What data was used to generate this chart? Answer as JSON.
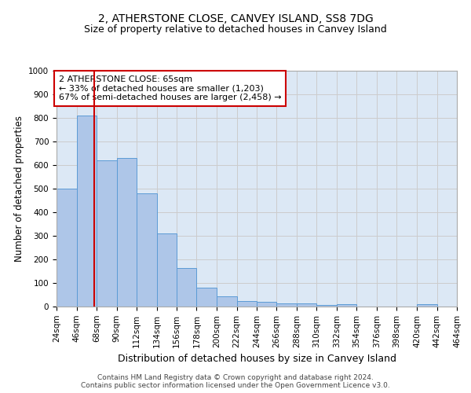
{
  "title": "2, ATHERSTONE CLOSE, CANVEY ISLAND, SS8 7DG",
  "subtitle": "Size of property relative to detached houses in Canvey Island",
  "xlabel": "Distribution of detached houses by size in Canvey Island",
  "ylabel": "Number of detached properties",
  "footer_line1": "Contains HM Land Registry data © Crown copyright and database right 2024.",
  "footer_line2": "Contains public sector information licensed under the Open Government Licence v3.0.",
  "bar_values": [
    500,
    810,
    620,
    630,
    480,
    310,
    162,
    80,
    45,
    25,
    20,
    15,
    12,
    7,
    10,
    0,
    0,
    0,
    10,
    0
  ],
  "bin_labels": [
    "24sqm",
    "46sqm",
    "68sqm",
    "90sqm",
    "112sqm",
    "134sqm",
    "156sqm",
    "178sqm",
    "200sqm",
    "222sqm",
    "244sqm",
    "266sqm",
    "288sqm",
    "310sqm",
    "332sqm",
    "354sqm",
    "376sqm",
    "398sqm",
    "420sqm",
    "442sqm",
    "464sqm"
  ],
  "bar_color": "#aec6e8",
  "bar_edge_color": "#5b9bd5",
  "red_line_x": 65,
  "annotation_text": "2 ATHERSTONE CLOSE: 65sqm\n← 33% of detached houses are smaller (1,203)\n67% of semi-detached houses are larger (2,458) →",
  "red_line_color": "#cc0000",
  "annotation_box_facecolor": "#ffffff",
  "annotation_box_edgecolor": "#cc0000",
  "ylim": [
    0,
    1000
  ],
  "yticks": [
    0,
    100,
    200,
    300,
    400,
    500,
    600,
    700,
    800,
    900,
    1000
  ],
  "grid_color": "#cccccc",
  "bg_color": "#dce8f5",
  "title_fontsize": 10,
  "subtitle_fontsize": 9,
  "xlabel_fontsize": 9,
  "ylabel_fontsize": 8.5,
  "tick_fontsize": 7.5,
  "annotation_fontsize": 8,
  "footer_fontsize": 6.5
}
